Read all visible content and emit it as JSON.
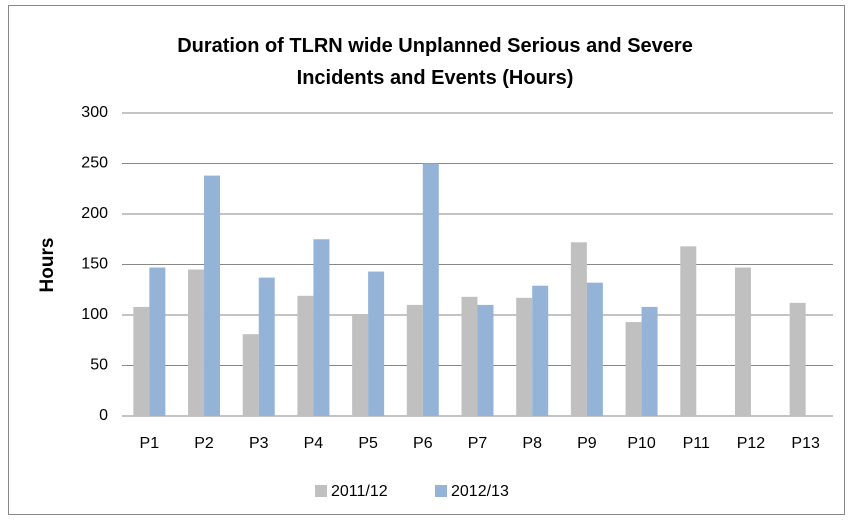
{
  "chart_data": {
    "type": "bar",
    "title": "Duration of TLRN wide Unplanned Serious and Severe Incidents and Events (Hours)",
    "y_label": "Hours",
    "categories": [
      "P1",
      "P2",
      "P3",
      "P4",
      "P5",
      "P6",
      "P7",
      "P8",
      "P9",
      "P10",
      "P11",
      "P12",
      "P13"
    ],
    "series": [
      {
        "name": "2011/12",
        "color": "#c0c0c0",
        "values": [
          108,
          145,
          81,
          119,
          101,
          110,
          118,
          117,
          172,
          93,
          168,
          147,
          112
        ]
      },
      {
        "name": "2012/13",
        "color": "#95b3d7",
        "values": [
          147,
          238,
          137,
          175,
          143,
          250,
          110,
          129,
          132,
          108,
          null,
          null,
          null
        ]
      }
    ],
    "ylim": [
      0,
      300
    ],
    "yticks": [
      0,
      50,
      100,
      150,
      200,
      250,
      300
    ],
    "grid": true,
    "legend": "bottom"
  }
}
